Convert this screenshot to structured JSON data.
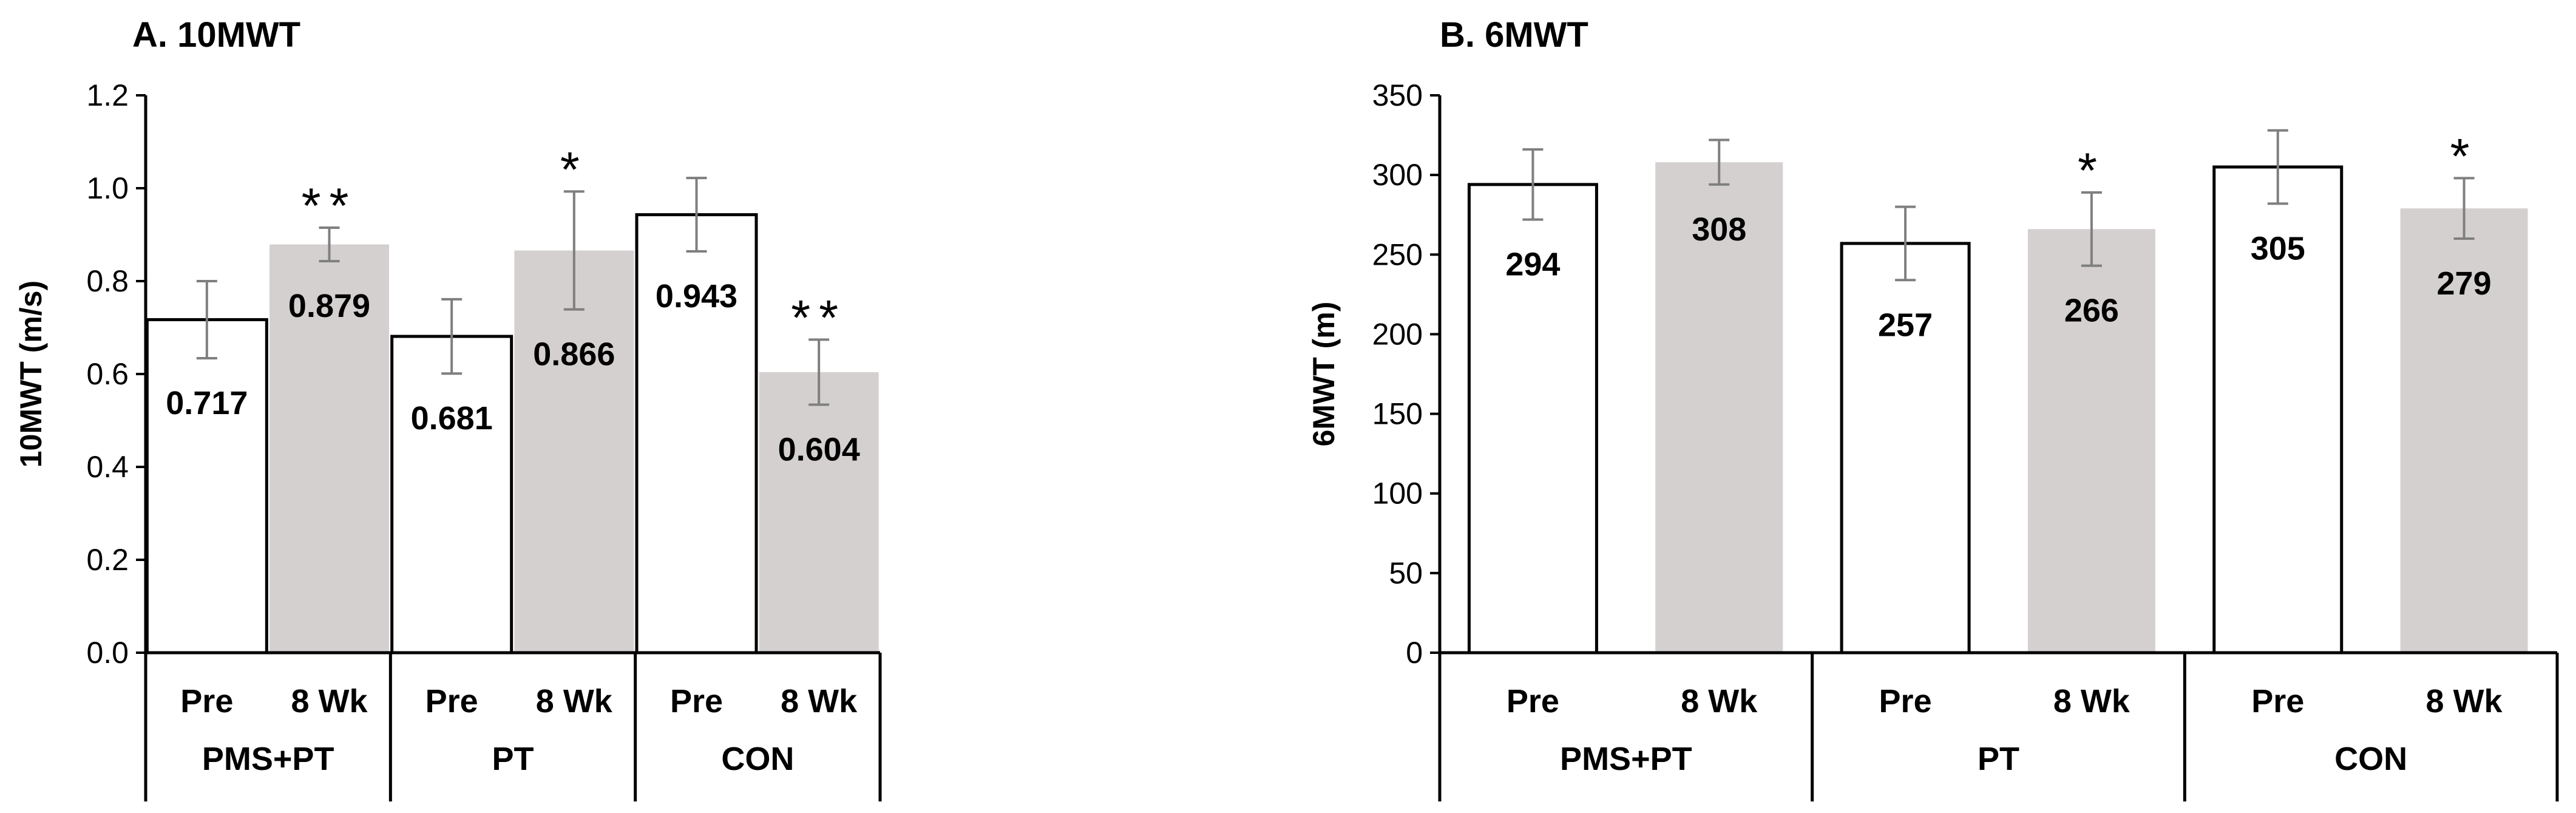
{
  "chart_data": [
    {
      "type": "bar",
      "title": "A. 10MWT",
      "ylabel": "10MWT (m/s)",
      "xlabel": "",
      "ylim": [
        0,
        1.2
      ],
      "yticks": [
        "0.0",
        "0.2",
        "0.4",
        "0.6",
        "0.8",
        "1.0",
        "1.2"
      ],
      "groups": [
        "PMS+PT",
        "PT",
        "CON"
      ],
      "bars": [
        {
          "group": "PMS+PT",
          "label": "Pre",
          "value": 0.717,
          "value_label": "0.717",
          "error": 0.083,
          "sig": "",
          "fill": "#ffffff"
        },
        {
          "group": "PMS+PT",
          "label": "8 Wk",
          "value": 0.879,
          "value_label": "0.879",
          "error": 0.036,
          "sig": "**",
          "fill": "#d4d0d0"
        },
        {
          "group": "PT",
          "label": "Pre",
          "value": 0.681,
          "value_label": "0.681",
          "error": 0.08,
          "sig": "",
          "fill": "#ffffff"
        },
        {
          "group": "PT",
          "label": "8 Wk",
          "value": 0.866,
          "value_label": "0.866",
          "error": 0.127,
          "sig": "*",
          "fill": "#d4d0d0"
        },
        {
          "group": "CON",
          "label": "Pre",
          "value": 0.943,
          "value_label": "0.943",
          "error": 0.079,
          "sig": "",
          "fill": "#ffffff"
        },
        {
          "group": "CON",
          "label": "8 Wk",
          "value": 0.604,
          "value_label": "0.604",
          "error": 0.07,
          "sig": "**",
          "fill": "#d4d0d0"
        }
      ]
    },
    {
      "type": "bar",
      "title": "B. 6MWT",
      "ylabel": "6MWT (m)",
      "xlabel": "",
      "ylim": [
        0,
        350
      ],
      "yticks": [
        "0",
        "50",
        "100",
        "150",
        "200",
        "250",
        "300",
        "350"
      ],
      "groups": [
        "PMS+PT",
        "PT",
        "CON"
      ],
      "bars": [
        {
          "group": "PMS+PT",
          "label": "Pre",
          "value": 294,
          "value_label": "294",
          "error": 22,
          "sig": "",
          "fill": "#ffffff"
        },
        {
          "group": "PMS+PT",
          "label": "8 Wk",
          "value": 308,
          "value_label": "308",
          "error": 14,
          "sig": "",
          "fill": "#d4d0d0"
        },
        {
          "group": "PT",
          "label": "Pre",
          "value": 257,
          "value_label": "257",
          "error": 23,
          "sig": "",
          "fill": "#ffffff"
        },
        {
          "group": "PT",
          "label": "8 Wk",
          "value": 266,
          "value_label": "266",
          "error": 23,
          "sig": "*",
          "fill": "#d4d0d0"
        },
        {
          "group": "CON",
          "label": "Pre",
          "value": 305,
          "value_label": "305",
          "error": 23,
          "sig": "",
          "fill": "#ffffff"
        },
        {
          "group": "CON",
          "label": "8 Wk",
          "value": 279,
          "value_label": "279",
          "error": 19,
          "sig": "*",
          "fill": "#d4d0d0"
        }
      ]
    }
  ]
}
